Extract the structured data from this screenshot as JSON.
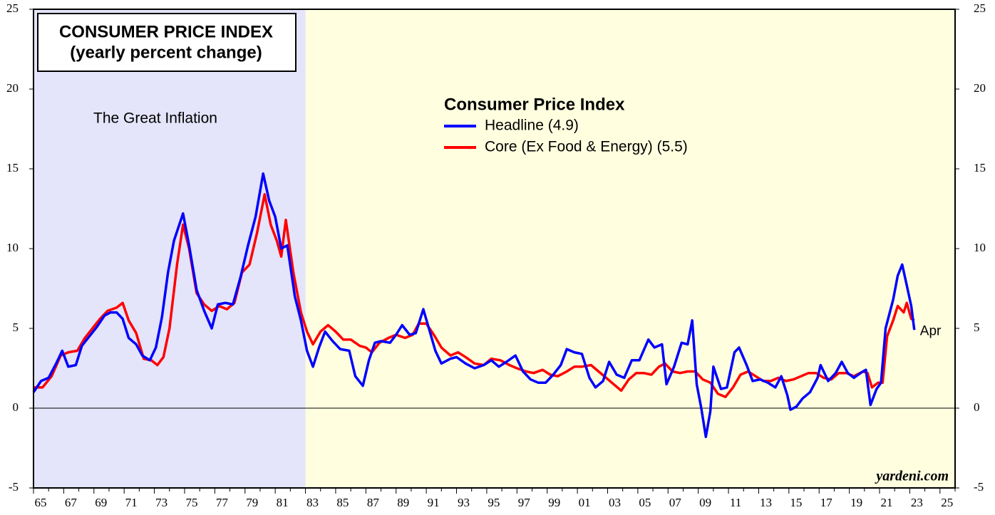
{
  "chart_data": {
    "type": "line",
    "title": "CONSUMER PRICE INDEX",
    "subtitle": "(yearly percent change)",
    "annotation": "The Great Inflation",
    "shade": {
      "from": 1965,
      "to": 1983,
      "color": "#e4e4fa"
    },
    "background": "#ffffe0",
    "legend_title": "Consumer Price Index",
    "end_label": "Apr",
    "source": "yardeni.com",
    "xlim": [
      1965,
      2026
    ],
    "ylim": [
      -5,
      25
    ],
    "yticks": [
      -5,
      0,
      5,
      10,
      15,
      20,
      25
    ],
    "zero_line": true,
    "xticks": [
      {
        "value": 1965,
        "label": "65"
      },
      {
        "value": 1967,
        "label": "67"
      },
      {
        "value": 1969,
        "label": "69"
      },
      {
        "value": 1971,
        "label": "71"
      },
      {
        "value": 1973,
        "label": "73"
      },
      {
        "value": 1975,
        "label": "75"
      },
      {
        "value": 1977,
        "label": "77"
      },
      {
        "value": 1979,
        "label": "79"
      },
      {
        "value": 1981,
        "label": "81"
      },
      {
        "value": 1983,
        "label": "83"
      },
      {
        "value": 1985,
        "label": "85"
      },
      {
        "value": 1987,
        "label": "87"
      },
      {
        "value": 1989,
        "label": "89"
      },
      {
        "value": 1991,
        "label": "91"
      },
      {
        "value": 1993,
        "label": "93"
      },
      {
        "value": 1995,
        "label": "95"
      },
      {
        "value": 1997,
        "label": "97"
      },
      {
        "value": 1999,
        "label": "99"
      },
      {
        "value": 2001,
        "label": "01"
      },
      {
        "value": 2003,
        "label": "03"
      },
      {
        "value": 2005,
        "label": "05"
      },
      {
        "value": 2007,
        "label": "07"
      },
      {
        "value": 2009,
        "label": "09"
      },
      {
        "value": 2011,
        "label": "11"
      },
      {
        "value": 2013,
        "label": "13"
      },
      {
        "value": 2015,
        "label": "15"
      },
      {
        "value": 2017,
        "label": "17"
      },
      {
        "value": 2019,
        "label": "19"
      },
      {
        "value": 2021,
        "label": "21"
      },
      {
        "value": 2023,
        "label": "23"
      },
      {
        "value": 2025,
        "label": "25"
      }
    ],
    "series": [
      {
        "name": "Headline (4.9)",
        "color": "#0000ff",
        "x": [
          1965.0,
          1965.5,
          1966.0,
          1966.5,
          1966.9,
          1967.3,
          1967.8,
          1968.2,
          1968.7,
          1969.2,
          1969.7,
          1970.1,
          1970.5,
          1970.9,
          1971.3,
          1971.8,
          1972.2,
          1972.7,
          1973.1,
          1973.5,
          1973.9,
          1974.3,
          1974.9,
          1975.3,
          1975.8,
          1976.3,
          1976.8,
          1977.2,
          1977.7,
          1978.2,
          1978.7,
          1979.2,
          1979.7,
          1980.2,
          1980.6,
          1981.0,
          1981.4,
          1981.8,
          1982.3,
          1982.7,
          1983.1,
          1983.5,
          1983.9,
          1984.3,
          1984.8,
          1985.3,
          1985.9,
          1986.3,
          1986.8,
          1987.2,
          1987.6,
          1988.0,
          1988.6,
          1989.0,
          1989.4,
          1989.9,
          1990.3,
          1990.8,
          1991.2,
          1991.6,
          1992.0,
          1992.6,
          1993.0,
          1993.6,
          1994.2,
          1994.8,
          1995.3,
          1995.8,
          1996.3,
          1996.9,
          1997.4,
          1997.9,
          1998.4,
          1998.9,
          1999.4,
          1999.9,
          2000.3,
          2000.8,
          2001.3,
          2001.8,
          2002.2,
          2002.7,
          2003.1,
          2003.6,
          2004.1,
          2004.6,
          2005.1,
          2005.7,
          2006.1,
          2006.6,
          2006.9,
          2007.4,
          2007.9,
          2008.3,
          2008.6,
          2008.9,
          2009.2,
          2009.5,
          2009.8,
          2010.0,
          2010.5,
          2010.9,
          2011.4,
          2011.7,
          2012.2,
          2012.6,
          2013.1,
          2013.6,
          2014.1,
          2014.5,
          2014.9,
          2015.1,
          2015.5,
          2015.9,
          2016.4,
          2016.9,
          2017.1,
          2017.6,
          2018.1,
          2018.5,
          2018.9,
          2019.3,
          2019.9,
          2020.1,
          2020.4,
          2020.8,
          2021.1,
          2021.4,
          2021.9,
          2022.2,
          2022.5,
          2022.8,
          2023.1,
          2023.3
        ],
        "values": [
          1.0,
          1.7,
          1.9,
          2.8,
          3.6,
          2.6,
          2.7,
          3.9,
          4.5,
          5.1,
          5.8,
          6.0,
          6.0,
          5.6,
          4.4,
          4.0,
          3.3,
          3.0,
          3.8,
          5.7,
          8.5,
          10.5,
          12.2,
          10.2,
          7.4,
          6.1,
          5.0,
          6.5,
          6.6,
          6.5,
          8.2,
          10.2,
          12.0,
          14.7,
          13.0,
          12.0,
          10.0,
          10.2,
          7.0,
          5.5,
          3.6,
          2.6,
          3.8,
          4.8,
          4.2,
          3.7,
          3.6,
          2.0,
          1.4,
          3.0,
          4.1,
          4.2,
          4.1,
          4.6,
          5.2,
          4.6,
          4.7,
          6.2,
          4.9,
          3.6,
          2.8,
          3.1,
          3.2,
          2.8,
          2.5,
          2.7,
          3.0,
          2.6,
          2.9,
          3.3,
          2.3,
          1.8,
          1.6,
          1.6,
          2.1,
          2.7,
          3.7,
          3.5,
          3.4,
          1.9,
          1.3,
          1.7,
          2.9,
          2.1,
          1.9,
          3.0,
          3.0,
          4.3,
          3.8,
          4.0,
          1.5,
          2.6,
          4.1,
          4.0,
          5.5,
          1.5,
          0.0,
          -1.8,
          -0.2,
          2.6,
          1.2,
          1.3,
          3.5,
          3.8,
          2.7,
          1.7,
          1.8,
          1.6,
          1.3,
          2.0,
          0.8,
          -0.1,
          0.1,
          0.6,
          1.0,
          1.9,
          2.7,
          1.7,
          2.2,
          2.9,
          2.2,
          1.9,
          2.3,
          2.4,
          0.2,
          1.2,
          1.6,
          5.0,
          6.8,
          8.3,
          9.0,
          7.7,
          6.4,
          4.9
        ]
      },
      {
        "name": "Core (Ex Food & Energy) (5.5)",
        "color": "#ff0000",
        "x": [
          1965.0,
          1965.6,
          1966.2,
          1966.8,
          1967.3,
          1967.9,
          1968.4,
          1968.9,
          1969.4,
          1969.9,
          1970.5,
          1970.9,
          1971.3,
          1971.8,
          1972.3,
          1972.8,
          1973.2,
          1973.6,
          1974.0,
          1974.5,
          1974.9,
          1975.3,
          1975.8,
          1976.3,
          1976.8,
          1977.3,
          1977.8,
          1978.3,
          1978.8,
          1979.3,
          1979.8,
          1980.3,
          1980.7,
          1981.1,
          1981.4,
          1981.7,
          1982.2,
          1982.7,
          1983.1,
          1983.5,
          1984.0,
          1984.5,
          1985.0,
          1985.5,
          1986.0,
          1986.6,
          1987.0,
          1987.4,
          1987.9,
          1988.5,
          1989.0,
          1989.6,
          1990.1,
          1990.5,
          1991.0,
          1991.5,
          1992.0,
          1992.6,
          1993.1,
          1993.6,
          1994.2,
          1994.8,
          1995.3,
          1995.9,
          1996.5,
          1997.0,
          1997.6,
          1998.1,
          1998.7,
          1999.2,
          1999.7,
          2000.3,
          2000.8,
          2001.3,
          2001.9,
          2002.4,
          2002.9,
          2003.4,
          2003.9,
          2004.4,
          2004.9,
          2005.4,
          2005.9,
          2006.4,
          2006.8,
          2007.3,
          2007.8,
          2008.3,
          2008.8,
          2009.3,
          2009.8,
          2010.3,
          2010.8,
          2011.3,
          2011.8,
          2012.3,
          2012.8,
          2013.3,
          2013.8,
          2014.3,
          2014.8,
          2015.3,
          2015.8,
          2016.3,
          2016.8,
          2017.3,
          2017.8,
          2018.3,
          2018.8,
          2019.3,
          2019.9,
          2020.2,
          2020.5,
          2020.9,
          2021.2,
          2021.5,
          2021.9,
          2022.2,
          2022.6,
          2022.8,
          2023.1,
          2023.3
        ],
        "values": [
          1.3,
          1.3,
          2.0,
          3.3,
          3.5,
          3.6,
          4.4,
          5.0,
          5.6,
          6.1,
          6.3,
          6.6,
          5.5,
          4.7,
          3.1,
          3.0,
          2.7,
          3.2,
          5.0,
          9.0,
          11.5,
          10.0,
          7.2,
          6.5,
          6.1,
          6.4,
          6.2,
          6.6,
          8.5,
          9.0,
          11.0,
          13.4,
          11.5,
          10.5,
          9.5,
          11.8,
          8.5,
          6.0,
          4.8,
          4.0,
          4.8,
          5.2,
          4.8,
          4.3,
          4.3,
          3.9,
          3.8,
          3.5,
          4.1,
          4.4,
          4.6,
          4.4,
          4.6,
          5.3,
          5.3,
          4.6,
          3.8,
          3.3,
          3.5,
          3.2,
          2.8,
          2.7,
          3.1,
          3.0,
          2.7,
          2.5,
          2.3,
          2.2,
          2.4,
          2.1,
          2.0,
          2.3,
          2.6,
          2.6,
          2.7,
          2.3,
          1.9,
          1.5,
          1.1,
          1.8,
          2.2,
          2.2,
          2.1,
          2.6,
          2.8,
          2.3,
          2.2,
          2.3,
          2.3,
          1.8,
          1.6,
          0.9,
          0.7,
          1.3,
          2.1,
          2.3,
          2.0,
          1.7,
          1.7,
          1.9,
          1.7,
          1.8,
          2.0,
          2.2,
          2.2,
          1.9,
          1.8,
          2.2,
          2.2,
          2.0,
          2.3,
          2.2,
          1.3,
          1.6,
          1.6,
          4.5,
          5.5,
          6.4,
          6.0,
          6.6,
          5.6,
          5.5
        ]
      }
    ]
  }
}
